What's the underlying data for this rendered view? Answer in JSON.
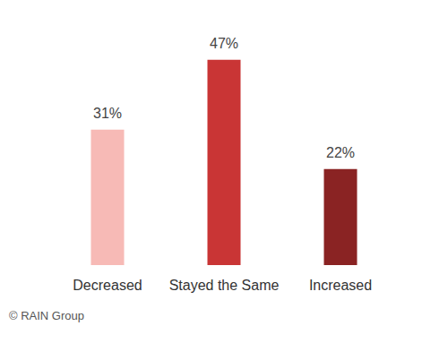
{
  "chart_data": {
    "type": "bar",
    "categories": [
      "Decreased",
      "Stayed the Same",
      "Increased"
    ],
    "values": [
      31,
      47,
      22
    ],
    "value_labels": [
      "31%",
      "47%",
      "22%"
    ],
    "colors": [
      "#f7bab6",
      "#c93535",
      "#8a2323"
    ],
    "data_labels": true,
    "grid": false,
    "tick_labels": "x",
    "annotations": [
      "© RAIN Group"
    ]
  }
}
